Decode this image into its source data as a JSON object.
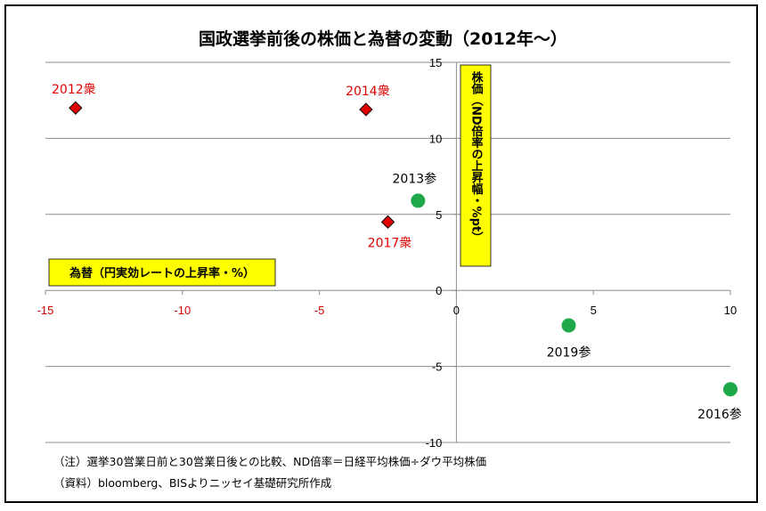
{
  "chart_data": {
    "type": "scatter",
    "title": "国政選挙前後の株価と為替の変動（2012年～）",
    "xlabel": "為替（円実効レートの上昇率・%）",
    "ylabel": "株価（ND倍率の上昇幅・%pt）",
    "xlim": [
      -15,
      10
    ],
    "ylim": [
      -10,
      15
    ],
    "x_ticks": [
      -15,
      -10,
      -5,
      0,
      5,
      10
    ],
    "y_ticks": [
      -10,
      -5,
      0,
      5,
      10,
      15
    ],
    "x_tick_labels": [
      "-15",
      "-10",
      "-5",
      "0",
      "5",
      "10"
    ],
    "y_tick_labels": [
      "-10",
      "-5",
      "0",
      "5",
      "10",
      "15"
    ],
    "grid": "horizontal",
    "series": [
      {
        "marker": "diamond",
        "color": "#e00000",
        "points": [
          {
            "label": "2012衆",
            "x": -13.9,
            "y": 12.0
          },
          {
            "label": "2014衆",
            "x": -3.3,
            "y": 11.9
          },
          {
            "label": "2017衆",
            "x": -2.5,
            "y": 4.5
          }
        ]
      },
      {
        "marker": "circle",
        "color": "#1ea84a",
        "points": [
          {
            "label": "2013参",
            "x": -1.4,
            "y": 5.9
          },
          {
            "label": "2019参",
            "x": 4.1,
            "y": -2.3
          },
          {
            "label": "2016参",
            "x": 10.0,
            "y": -6.5
          }
        ]
      }
    ]
  },
  "notes": [
    "（注）選挙30営業日前と30営業日後との比較、ND倍率＝日経平均株価÷ダウ平均株価",
    "（資料）bloomberg、BISよりニッセイ基礎研究所作成"
  ],
  "colors": {
    "negative_tick": "#d00000",
    "label_box_fill": "#ffff00",
    "label_red": "#e00000",
    "label_black": "#000000"
  }
}
